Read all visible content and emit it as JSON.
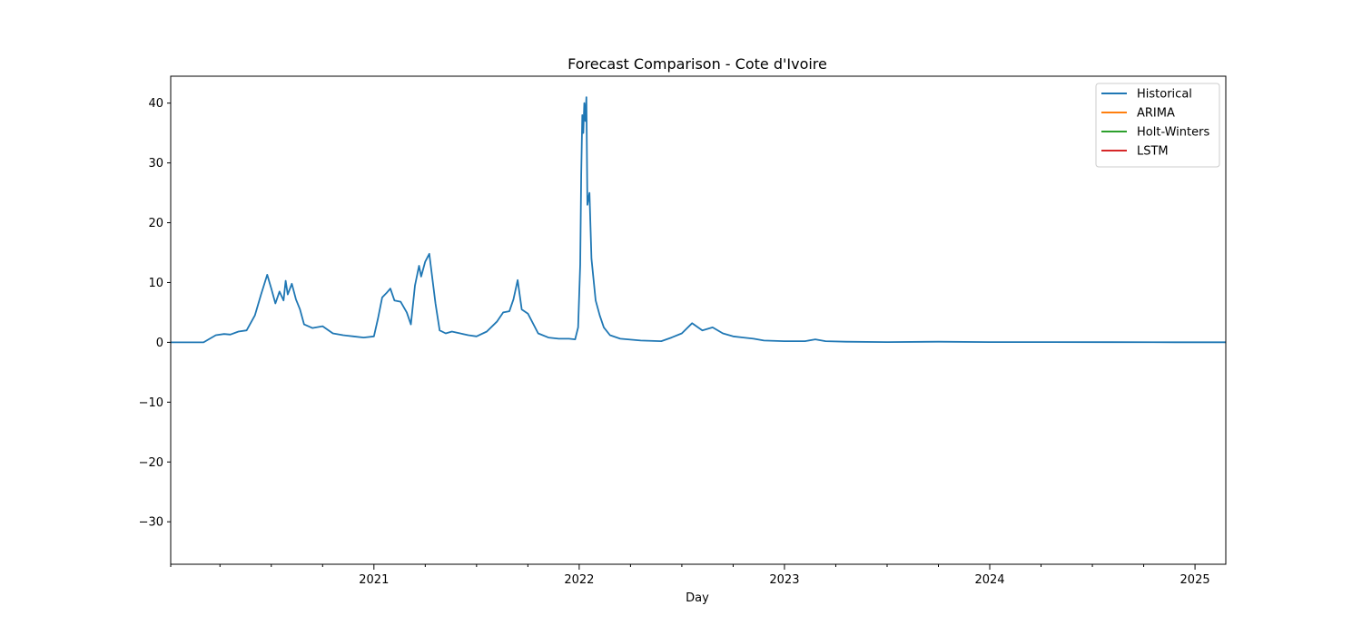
{
  "chart_data": {
    "type": "line",
    "title": "Forecast Comparison - Cote d'Ivoire",
    "xlabel": "Day",
    "ylabel": "",
    "xlim": [
      2020.01,
      2025.15
    ],
    "ylim": [
      -37.1,
      44.5
    ],
    "grid": false,
    "legend_position": "top-right",
    "x_major_ticks": [
      2021,
      2022,
      2023,
      2024,
      2025
    ],
    "x_major_labels": [
      "2021",
      "2022",
      "2023",
      "2024",
      "2025"
    ],
    "x_minor_ticks": [
      2020.25,
      2020.5,
      2020.75,
      2021.25,
      2021.5,
      2021.75,
      2022.25,
      2022.5,
      2022.75,
      2023.25,
      2023.5,
      2023.75,
      2024.25,
      2024.5,
      2024.75
    ],
    "y_ticks": [
      -30,
      -20,
      -10,
      0,
      10,
      20,
      30,
      40
    ],
    "y_tick_labels": [
      "−30",
      "−20",
      "−10",
      "0",
      "10",
      "20",
      "30",
      "40"
    ],
    "series": [
      {
        "name": "Historical",
        "color": "#1f77b4",
        "x": [
          2020.01,
          2020.17,
          2020.2,
          2020.23,
          2020.27,
          2020.3,
          2020.34,
          2020.38,
          2020.42,
          2020.45,
          2020.48,
          2020.5,
          2020.52,
          2020.54,
          2020.56,
          2020.57,
          2020.58,
          2020.6,
          2020.62,
          2020.64,
          2020.66,
          2020.7,
          2020.75,
          2020.8,
          2020.85,
          2020.9,
          2020.95,
          2021.0,
          2021.02,
          2021.04,
          2021.06,
          2021.08,
          2021.1,
          2021.13,
          2021.16,
          2021.18,
          2021.2,
          2021.22,
          2021.23,
          2021.25,
          2021.27,
          2021.28,
          2021.3,
          2021.32,
          2021.35,
          2021.38,
          2021.42,
          2021.46,
          2021.5,
          2021.55,
          2021.6,
          2021.63,
          2021.66,
          2021.68,
          2021.7,
          2021.72,
          2021.75,
          2021.8,
          2021.85,
          2021.9,
          2021.95,
          2021.98,
          2021.995,
          2022.0,
          2022.005,
          2022.01,
          2022.015,
          2022.02,
          2022.025,
          2022.03,
          2022.035,
          2022.04,
          2022.05,
          2022.06,
          2022.08,
          2022.1,
          2022.12,
          2022.15,
          2022.2,
          2022.3,
          2022.4,
          2022.45,
          2022.5,
          2022.55,
          2022.6,
          2022.65,
          2022.7,
          2022.75,
          2022.8,
          2022.85,
          2022.9,
          2023.0,
          2023.1,
          2023.15,
          2023.2,
          2023.3,
          2023.5,
          2023.75,
          2024.0,
          2024.3,
          2024.6,
          2024.9,
          2025.15
        ],
        "y": [
          0,
          0,
          0.6,
          1.2,
          1.4,
          1.3,
          1.8,
          2.0,
          4.5,
          8.0,
          11.3,
          9.0,
          6.5,
          8.5,
          7.0,
          10.3,
          8.0,
          9.8,
          7.2,
          5.5,
          3.0,
          2.4,
          2.7,
          1.5,
          1.2,
          1.0,
          0.8,
          1.0,
          4.0,
          7.5,
          8.2,
          9.0,
          7.0,
          6.8,
          5.0,
          3.0,
          9.5,
          12.8,
          11.0,
          13.5,
          14.8,
          12.0,
          6.5,
          2.0,
          1.5,
          1.8,
          1.5,
          1.2,
          1.0,
          1.8,
          3.5,
          5.0,
          5.2,
          7.2,
          10.4,
          5.5,
          4.8,
          1.5,
          0.8,
          0.6,
          0.6,
          0.5,
          2.5,
          8.0,
          13.0,
          28.0,
          38.0,
          35.0,
          40.0,
          37.0,
          41.0,
          23.0,
          25.0,
          14.0,
          7.0,
          4.5,
          2.5,
          1.2,
          0.6,
          0.3,
          0.2,
          0.8,
          1.5,
          3.2,
          2.0,
          2.5,
          1.5,
          1.0,
          0.8,
          0.6,
          0.3,
          0.2,
          0.2,
          0.5,
          0.2,
          0.1,
          0.05,
          0.1,
          0.05,
          0.05,
          0.03,
          0.02,
          0.02
        ]
      },
      {
        "name": "ARIMA",
        "color": "#ff7f0e",
        "x": [],
        "y": []
      },
      {
        "name": "Holt-Winters",
        "color": "#2ca02c",
        "x": [],
        "y": []
      },
      {
        "name": "LSTM",
        "color": "#d62728",
        "x": [],
        "y": []
      }
    ]
  }
}
